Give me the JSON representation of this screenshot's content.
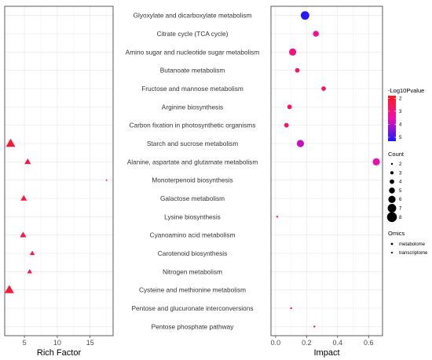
{
  "chart_data": {
    "type": "scatter",
    "pathways": [
      "Glyoxylate and dicarboxylate metabolism",
      "Citrate cycle (TCA cycle)",
      "Amino sugar and nucleotide sugar metabolism",
      "Butanoate metabolism",
      "Fructose and mannose metabolism",
      "Arginine biosynthesis",
      "Carbon fixation in photosynthetic organisms",
      "Starch and sucrose metabolism",
      "Alanine, aspartate and glutamate metabolism",
      "Monoterpenoid biosynthesis",
      "Galactose metabolism",
      "Lysine biosynthesis",
      "Cyanoamino acid metabolism",
      "Carotenoid biosynthesis",
      "Nitrogen metabolism",
      "Cysteine and methionine metabolism",
      "Pentose and glucuronate interconversions",
      "Pentose phosphate pathway"
    ],
    "left_panel": {
      "xlabel": "Rich Factor",
      "xlim": [
        2,
        18.5
      ],
      "xticks": [
        5,
        10,
        15
      ],
      "omics": "transcriptome",
      "points": [
        {
          "pathway": "Starch and sucrose metabolism",
          "x": 2.9,
          "count": 7,
          "neglog10p": 2.1
        },
        {
          "pathway": "Alanine, aspartate and glutamate metabolism",
          "x": 5.5,
          "count": 5,
          "neglog10p": 2.3
        },
        {
          "pathway": "Monoterpenoid biosynthesis",
          "x": 17.5,
          "count": 2,
          "neglog10p": 2.5
        },
        {
          "pathway": "Galactose metabolism",
          "x": 4.9,
          "count": 5,
          "neglog10p": 2.3
        },
        {
          "pathway": "Cyanoamino acid metabolism",
          "x": 4.8,
          "count": 5,
          "neglog10p": 2.4
        },
        {
          "pathway": "Carotenoid biosynthesis",
          "x": 6.2,
          "count": 4,
          "neglog10p": 2.4
        },
        {
          "pathway": "Nitrogen metabolism",
          "x": 5.8,
          "count": 4,
          "neglog10p": 2.4
        },
        {
          "pathway": "Cysteine and methionine metabolism",
          "x": 2.7,
          "count": 7,
          "neglog10p": 2.1
        }
      ]
    },
    "right_panel": {
      "xlabel": "Impact",
      "xlim": [
        -0.03,
        0.69
      ],
      "xticks": [
        0.0,
        0.2,
        0.4,
        0.6
      ],
      "xtick_labels": [
        "0.0",
        "0.2",
        "0.4",
        "0.6"
      ],
      "omics": "metabolome",
      "points": [
        {
          "pathway": "Glyoxylate and dicarboxylate metabolism",
          "x": 0.19,
          "count": 7,
          "neglog10p": 5.2
        },
        {
          "pathway": "Citrate cycle (TCA cycle)",
          "x": 0.26,
          "count": 5,
          "neglog10p": 3.2
        },
        {
          "pathway": "Amino sugar and nucleotide sugar metabolism",
          "x": 0.11,
          "count": 6,
          "neglog10p": 3.0
        },
        {
          "pathway": "Butanoate metabolism",
          "x": 0.14,
          "count": 4,
          "neglog10p": 2.7
        },
        {
          "pathway": "Fructose and mannose metabolism",
          "x": 0.31,
          "count": 4,
          "neglog10p": 2.6
        },
        {
          "pathway": "Arginine biosynthesis",
          "x": 0.09,
          "count": 4,
          "neglog10p": 2.5
        },
        {
          "pathway": "Carbon fixation in photosynthetic organisms",
          "x": 0.07,
          "count": 4,
          "neglog10p": 2.6
        },
        {
          "pathway": "Starch and sucrose metabolism",
          "x": 0.16,
          "count": 6,
          "neglog10p": 3.9
        },
        {
          "pathway": "Alanine, aspartate and glutamate metabolism",
          "x": 0.65,
          "count": 6,
          "neglog10p": 3.6
        },
        {
          "pathway": "Lysine biosynthesis",
          "x": 0.01,
          "count": 2,
          "neglog10p": 2.4
        },
        {
          "pathway": "Pentose and glucuronate interconversions",
          "x": 0.1,
          "count": 2,
          "neglog10p": 2.4
        },
        {
          "pathway": "Pentose phosphate pathway",
          "x": 0.25,
          "count": 2,
          "neglog10p": 2.3
        }
      ]
    },
    "color_legend": {
      "title": "-Log10Pvalue",
      "ticks": [
        2,
        3,
        4,
        5
      ],
      "range": [
        1.8,
        5.3
      ],
      "colors": [
        "#ff1a1a",
        "#ee0fb0",
        "#1a1aff"
      ]
    },
    "size_legend": {
      "title": "Count",
      "values": [
        2,
        3,
        4,
        5,
        6,
        7,
        8
      ]
    },
    "shape_legend": {
      "title": "Omics",
      "entries": [
        {
          "label": "metabolome",
          "shape": "circle"
        },
        {
          "label": "transcriptome",
          "shape": "triangle"
        }
      ]
    },
    "grid": true,
    "legend_position": "right"
  }
}
